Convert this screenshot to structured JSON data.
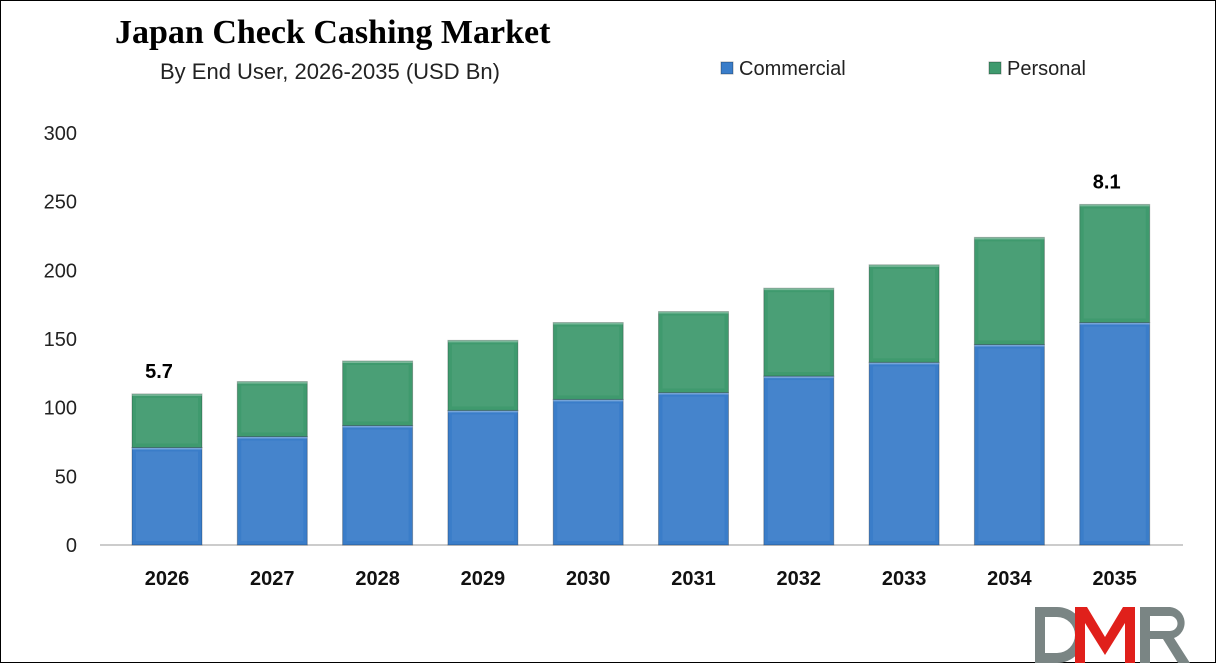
{
  "chart_data": {
    "type": "bar",
    "stacked": true,
    "title": "Japan Check Cashing Market",
    "subtitle": "By End User, 2026-2035 (USD Bn)",
    "xlabel": "",
    "ylabel": "",
    "ylim": [
      0,
      300
    ],
    "yticks": [
      0,
      50,
      100,
      150,
      200,
      250,
      300
    ],
    "grid": false,
    "legend_position": "top-right",
    "categories": [
      "2026",
      "2027",
      "2028",
      "2029",
      "2030",
      "2031",
      "2032",
      "2033",
      "2034",
      "2035"
    ],
    "series": [
      {
        "name": "Commercial",
        "color": "#3a7dc9",
        "values": [
          71,
          79,
          87,
          98,
          106,
          111,
          123,
          133,
          146,
          162
        ]
      },
      {
        "name": "Personal",
        "color": "#3f9a6e",
        "values": [
          39,
          40,
          47,
          51,
          56,
          59,
          64,
          71,
          78,
          86
        ]
      }
    ],
    "data_labels": [
      {
        "category": "2026",
        "text": "5.7"
      },
      {
        "category": "2035",
        "text": "8.1"
      }
    ]
  },
  "logo": {
    "text": "DMR",
    "colors": {
      "D": "#7a8584",
      "M": "#e0201b",
      "R": "#7a8584"
    }
  }
}
